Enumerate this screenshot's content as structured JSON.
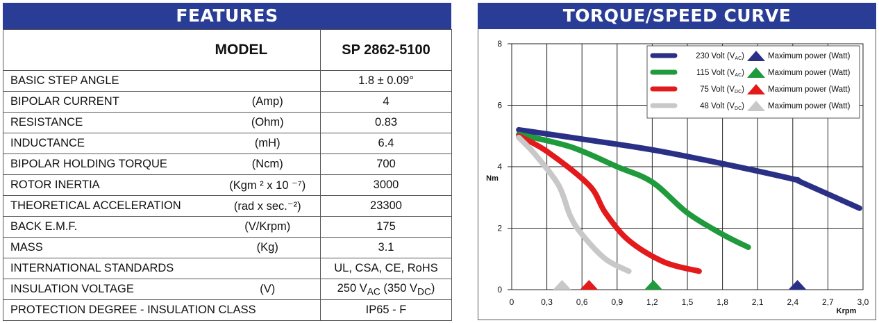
{
  "features": {
    "title": "FEATURES",
    "header_label": "MODEL",
    "header_value": "SP 2862-5100",
    "rows": [
      {
        "label": "BASIC STEP ANGLE",
        "unit": "",
        "value": "1.8 ± 0.09°"
      },
      {
        "label": "BIPOLAR CURRENT",
        "unit": "(Amp)",
        "value": "4"
      },
      {
        "label": "RESISTANCE",
        "unit": "(Ohm)",
        "value": "0.83"
      },
      {
        "label": "INDUCTANCE",
        "unit": "(mH)",
        "value": "6.4"
      },
      {
        "label": "BIPOLAR HOLDING TORQUE",
        "unit": "(Ncm)",
        "value": "700"
      },
      {
        "label": "ROTOR INERTIA",
        "unit": "(Kgm ² x 10 ⁻⁷)",
        "value": "3000"
      },
      {
        "label": "THEORETICAL ACCELERATION",
        "unit": "(rad x sec.⁻²)",
        "value": "23300"
      },
      {
        "label": "BACK E.M.F.",
        "unit": "(V/Krpm)",
        "value": "175"
      },
      {
        "label": "MASS",
        "unit": "(Kg)",
        "value": "3.1"
      },
      {
        "label": "INTERNATIONAL STANDARDS",
        "unit": "",
        "value": "UL, CSA, CE, RoHS"
      },
      {
        "label": "INSULATION VOLTAGE",
        "unit": "(V)",
        "value": "250 V<sub>AC</sub> (350 V<sub>DC</sub>)"
      },
      {
        "label": "PROTECTION DEGREE - INSULATION CLASS",
        "unit": "",
        "value": "IP65 - F"
      }
    ]
  },
  "chart_data": {
    "type": "line",
    "title": "TORQUE/SPEED CURVE",
    "xlabel": "Krpm",
    "ylabel": "Nm",
    "xlim": [
      0,
      3.0
    ],
    "ylim": [
      0,
      8
    ],
    "xticks": [
      0,
      0.3,
      0.6,
      0.9,
      1.2,
      1.5,
      1.8,
      2.1,
      2.4,
      2.7,
      3.0
    ],
    "xtick_labels": [
      "0",
      "0,3",
      "0,6",
      "0,9",
      "1,2",
      "1,5",
      "1,8",
      "2,1",
      "2,4",
      "2,7",
      "3,0"
    ],
    "yticks": [
      0,
      2,
      4,
      6,
      8
    ],
    "grid": true,
    "legend_position": "top-right",
    "max_power_label": "Maximum power (Watt)",
    "series": [
      {
        "name": "230 Volt (VAC)",
        "volt": "230 Volt (V",
        "sub": "AC",
        "color": "#2b3087",
        "x": [
          0.06,
          0.6,
          1.2,
          1.8,
          2.4,
          2.47,
          2.97
        ],
        "y": [
          5.2,
          4.9,
          4.55,
          4.1,
          3.6,
          3.5,
          2.65
        ],
        "max_power_x": 2.44
      },
      {
        "name": "115 Volt (VAC)",
        "volt": "115 Volt (V",
        "sub": "AC",
        "color": "#1f9a3c",
        "x": [
          0.06,
          0.5,
          0.9,
          1.2,
          1.5,
          1.8,
          2.02
        ],
        "y": [
          5.05,
          4.65,
          4.0,
          3.5,
          2.5,
          1.8,
          1.38
        ],
        "max_power_x": 1.21
      },
      {
        "name": "75 Volt (VDC)",
        "volt": "75 Volt (V",
        "sub": "DC",
        "color": "#e31a1c",
        "x": [
          0.06,
          0.3,
          0.66,
          0.8,
          1.0,
          1.3,
          1.6
        ],
        "y": [
          5.0,
          4.5,
          3.4,
          2.5,
          1.6,
          0.9,
          0.6
        ],
        "max_power_x": 0.66
      },
      {
        "name": "48 Volt (VDC)",
        "volt": "48 Volt (V",
        "sub": "DC",
        "color": "#c8c8c8",
        "x": [
          0.06,
          0.2,
          0.4,
          0.5,
          0.6,
          0.8,
          1.0
        ],
        "y": [
          4.95,
          4.4,
          3.4,
          2.4,
          1.8,
          1.0,
          0.6
        ],
        "max_power_x": 0.43
      }
    ]
  }
}
